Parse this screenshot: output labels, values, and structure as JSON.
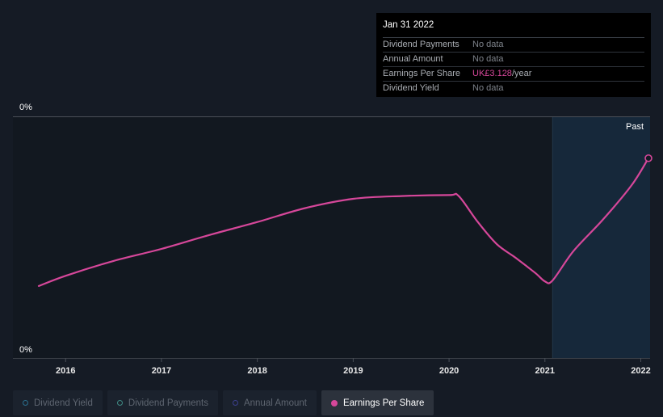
{
  "tooltip": {
    "date": "Jan 31 2022",
    "rows": [
      {
        "label": "Dividend Payments",
        "value": "No data"
      },
      {
        "label": "Annual Amount",
        "value": "No data"
      },
      {
        "label": "Earnings Per Share",
        "value": "UK£3.128",
        "unit": "/year"
      },
      {
        "label": "Dividend Yield",
        "value": "No data"
      }
    ]
  },
  "legend": [
    {
      "label": "Dividend Yield",
      "color": "#2a6f8e",
      "active": false
    },
    {
      "label": "Dividend Payments",
      "color": "#3f8a84",
      "active": false
    },
    {
      "label": "Annual Amount",
      "color": "#3b3f8e",
      "active": false
    },
    {
      "label": "Earnings Per Share",
      "color": "#d6479a",
      "active": true
    }
  ],
  "chart_data": {
    "type": "line",
    "y_top_label": "0%",
    "y_bottom_label": "0%",
    "past_label": "Past",
    "x_ticks": [
      "2016",
      "2017",
      "2018",
      "2019",
      "2020",
      "2021",
      "2022"
    ],
    "x_tick_values": [
      2016,
      2017,
      2018,
      2019,
      2020,
      2021,
      2022
    ],
    "xlim": [
      2015.72,
      2022.08
    ],
    "ylim": [
      1.0,
      3.3
    ],
    "past_start": 2021.08,
    "series": [
      {
        "color": "#d6479a",
        "x": [
          2015.72,
          2016.0,
          2016.5,
          2017.0,
          2017.5,
          2018.0,
          2018.5,
          2019.0,
          2019.5,
          2020.0,
          2020.1,
          2020.3,
          2020.5,
          2020.7,
          2020.9,
          2021.0,
          2021.08,
          2021.3,
          2021.6,
          2021.9,
          2022.08
        ],
        "y": [
          1.75,
          1.86,
          2.02,
          2.15,
          2.3,
          2.44,
          2.59,
          2.69,
          2.72,
          2.73,
          2.72,
          2.44,
          2.2,
          2.05,
          1.89,
          1.8,
          1.81,
          2.13,
          2.46,
          2.83,
          3.128
        ]
      }
    ]
  }
}
